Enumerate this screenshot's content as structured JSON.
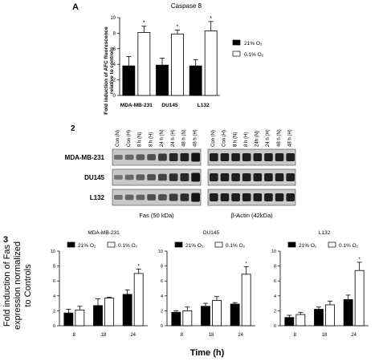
{
  "panel_a": {
    "letter": "A",
    "title": "Caspase 8",
    "ylabel_line1": "Fold induction of AFC fluorescence",
    "ylabel_line2": "relative to controls",
    "legend": [
      {
        "label": "21% O₂",
        "color": "#000000"
      },
      {
        "label": "0.1% O₂",
        "color": "#ffffff"
      }
    ]
  },
  "panel_b": {
    "letter": "2",
    "lanes": [
      "Con (N)",
      "Con (H)",
      "8 h (N)",
      "8 h (H)",
      "24 h (N)",
      "24 h (H)",
      "48 h (N)",
      "48 h (H)"
    ],
    "lanes_actin": [
      "Con (N)",
      "Con (H)",
      "8 h (N)",
      "8 h (H)",
      "24h (N)",
      "24 h (H)",
      "48 h (N)",
      "48 h (H)"
    ],
    "rows": [
      "MDA-MB-231",
      "DU145",
      "L132"
    ],
    "fas_label": "Fas (50 kDa)",
    "actin_label": "β-Actin (42kDa)"
  },
  "panel_c": {
    "letter": "3",
    "ylabel_lines": [
      "Fold induction of Fas",
      "expression normalized",
      "to Controls"
    ],
    "xlabel": "Time (h)",
    "legend": [
      "21% O₂",
      "0.1% O₂"
    ]
  },
  "chart_data": [
    {
      "type": "bar",
      "title": "Caspase 8",
      "categories": [
        "MDA-MB-231",
        "DU145",
        "L132"
      ],
      "series": [
        {
          "name": "21% O₂",
          "values": [
            3.8,
            3.9,
            3.8
          ],
          "errors": [
            1.2,
            0.9,
            0.8
          ]
        },
        {
          "name": "0.1% O₂",
          "values": [
            8.1,
            7.9,
            8.3
          ],
          "errors": [
            0.8,
            0.5,
            1.2
          ]
        }
      ],
      "annotations": [
        "*",
        "*",
        "*"
      ],
      "ylabel": "Fold induction of AFC fluorescence relative to controls",
      "ylim": [
        0,
        10
      ],
      "yticks": [
        0,
        2,
        4,
        6,
        8,
        10
      ],
      "legend_position": "right"
    },
    {
      "type": "bar",
      "title": "MDA-MB-231",
      "categories": [
        "8",
        "18",
        "24"
      ],
      "series": [
        {
          "name": "21% O₂",
          "values": [
            1.7,
            2.7,
            4.2
          ],
          "errors": [
            0.5,
            0.9,
            0.6
          ]
        },
        {
          "name": "0.1% O₂",
          "values": [
            2.1,
            3.7,
            7.0
          ],
          "errors": [
            0.5,
            0.1,
            0.6
          ]
        }
      ],
      "annotations": [
        "",
        "",
        "*"
      ],
      "ylim": [
        0,
        10
      ],
      "yticks": [
        0,
        2,
        4,
        6,
        8,
        10
      ],
      "legend_position": "top"
    },
    {
      "type": "bar",
      "title": "DU145",
      "categories": [
        "8",
        "18",
        "24"
      ],
      "series": [
        {
          "name": "21% O₂",
          "values": [
            1.8,
            2.6,
            2.9
          ],
          "errors": [
            0.2,
            0.4,
            0.2
          ]
        },
        {
          "name": "0.1% O₂",
          "values": [
            2.0,
            3.4,
            6.9
          ],
          "errors": [
            0.5,
            0.5,
            1.0
          ]
        }
      ],
      "annotations": [
        "",
        "",
        "*"
      ],
      "ylim": [
        0,
        10
      ],
      "yticks": [
        0,
        2,
        4,
        6,
        8,
        10
      ],
      "legend_position": "top"
    },
    {
      "type": "bar",
      "title": "L132",
      "categories": [
        "8",
        "18",
        "24"
      ],
      "series": [
        {
          "name": "21% O₂",
          "values": [
            1.1,
            2.2,
            3.5
          ],
          "errors": [
            0.3,
            0.3,
            0.6
          ]
        },
        {
          "name": "0.1% O₂",
          "values": [
            1.5,
            2.8,
            7.4
          ],
          "errors": [
            0.3,
            0.5,
            1.1
          ]
        }
      ],
      "annotations": [
        "",
        "",
        "*"
      ],
      "ylim": [
        0,
        10
      ],
      "yticks": [
        0,
        2,
        4,
        6,
        8,
        10
      ],
      "legend_position": "top"
    }
  ]
}
